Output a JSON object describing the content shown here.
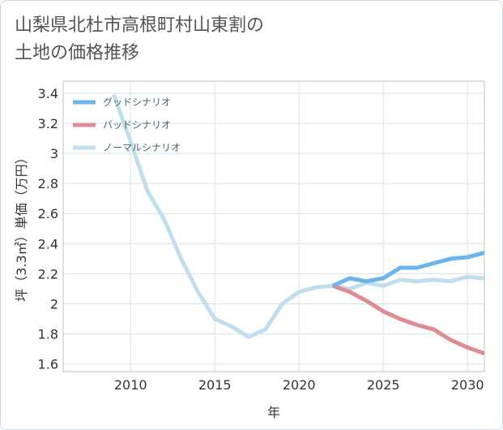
{
  "title_lines": [
    "山梨県北杜市高根町村山東割の",
    "土地の価格推移"
  ],
  "chart_data": {
    "type": "line",
    "xlabel": "年",
    "ylabel": "坪（3.3㎡）単価（万円）",
    "xlim": [
      2006,
      2031
    ],
    "ylim": [
      1.55,
      3.48
    ],
    "xticks": [
      2010,
      2015,
      2020,
      2025,
      2030
    ],
    "yticks": [
      1.6,
      1.8,
      2,
      2.2,
      2.4,
      2.6,
      2.8,
      3,
      3.2,
      3.4
    ],
    "grid": true,
    "legend_position": "top-left",
    "series": [
      {
        "name": "グッドシナリオ",
        "color": "#6cb4ec",
        "x": [
          2022,
          2023,
          2024,
          2025,
          2026,
          2027,
          2028,
          2029,
          2030,
          2031
        ],
        "y": [
          2.12,
          2.17,
          2.15,
          2.17,
          2.24,
          2.24,
          2.27,
          2.3,
          2.31,
          2.34
        ]
      },
      {
        "name": "バッドシナリオ",
        "color": "#de8c91",
        "x": [
          2022,
          2023,
          2024,
          2025,
          2026,
          2027,
          2028,
          2029,
          2030,
          2031
        ],
        "y": [
          2.12,
          2.08,
          2.02,
          1.95,
          1.9,
          1.86,
          1.83,
          1.76,
          1.71,
          1.67
        ]
      },
      {
        "name": "ノーマルシナリオ",
        "color": "#c1deec",
        "x": [
          2009,
          2010,
          2011,
          2012,
          2013,
          2014,
          2015,
          2016,
          2017,
          2018,
          2019,
          2020,
          2021,
          2022,
          2023,
          2024,
          2025,
          2026,
          2027,
          2028,
          2029,
          2030,
          2031
        ],
        "y": [
          3.39,
          3.08,
          2.75,
          2.56,
          2.3,
          2.08,
          1.9,
          1.85,
          1.78,
          1.83,
          2.0,
          2.08,
          2.11,
          2.12,
          2.1,
          2.14,
          2.12,
          2.16,
          2.15,
          2.16,
          2.15,
          2.18,
          2.17
        ]
      }
    ]
  }
}
